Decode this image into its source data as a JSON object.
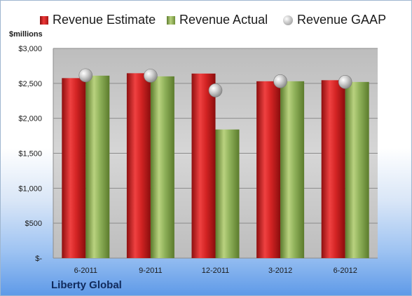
{
  "chart_data": {
    "type": "bar",
    "ylabel": "$millions",
    "xlabel": "Liberty Global",
    "categories": [
      "6-2011",
      "9-2011",
      "12-2011",
      "3-2012",
      "6-2012"
    ],
    "series": [
      {
        "name": "Revenue Estimate",
        "kind": "bar",
        "color": "#d42424",
        "values": [
          2575,
          2645,
          2640,
          2530,
          2545
        ]
      },
      {
        "name": "Revenue Actual",
        "kind": "bar",
        "color": "#8fb15a",
        "values": [
          2610,
          2600,
          1840,
          2530,
          2520
        ]
      },
      {
        "name": "Revenue GAAP",
        "kind": "marker",
        "color": "#b4b4b4",
        "values": [
          2615,
          2610,
          2400,
          2530,
          2520
        ]
      }
    ],
    "yticks": [
      0,
      500,
      1000,
      1500,
      2000,
      2500,
      3000
    ],
    "ytick_labels": [
      "$-",
      "$500",
      "$1,000",
      "$1,500",
      "$2,000",
      "$2,500",
      "$3,000"
    ],
    "ylim": [
      0,
      3000
    ],
    "grid": true,
    "legend_position": "top"
  }
}
